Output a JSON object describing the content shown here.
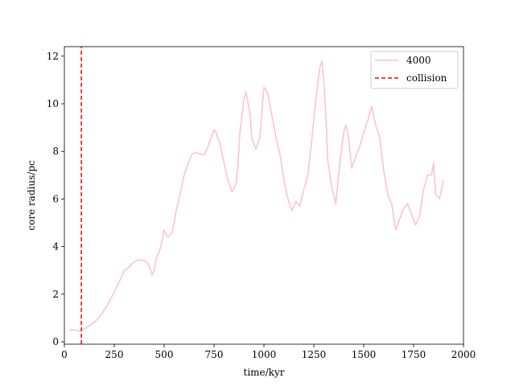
{
  "chart_data": {
    "type": "line",
    "title": "",
    "xlabel": "time/kyr",
    "ylabel": "core radius/pc",
    "xlim": [
      0,
      2000
    ],
    "ylim": [
      -0.1,
      12.4
    ],
    "xticks": [
      0,
      250,
      500,
      750,
      1000,
      1250,
      1500,
      1750,
      2000
    ],
    "yticks": [
      0,
      2,
      4,
      6,
      8,
      10,
      12
    ],
    "grid": false,
    "legend_position": "top-right",
    "series": [
      {
        "name": "4000",
        "color": "#ffc0cb",
        "style": "solid",
        "x": [
          25,
          50,
          80,
          100,
          130,
          160,
          190,
          220,
          250,
          280,
          300,
          320,
          340,
          360,
          380,
          400,
          420,
          440,
          450,
          460,
          480,
          500,
          510,
          520,
          540,
          550,
          560,
          580,
          600,
          620,
          640,
          660,
          680,
          700,
          720,
          740,
          750,
          760,
          780,
          800,
          820,
          840,
          860,
          870,
          880,
          900,
          910,
          930,
          940,
          960,
          980,
          1000,
          1020,
          1040,
          1060,
          1080,
          1100,
          1120,
          1140,
          1160,
          1180,
          1200,
          1220,
          1240,
          1260,
          1280,
          1290,
          1300,
          1310,
          1320,
          1340,
          1360,
          1380,
          1400,
          1410,
          1420,
          1440,
          1460,
          1480,
          1500,
          1520,
          1540,
          1560,
          1580,
          1600,
          1620,
          1640,
          1660,
          1700,
          1720,
          1760,
          1780,
          1800,
          1820,
          1840,
          1850,
          1860,
          1880,
          1900
        ],
        "y": [
          0.5,
          0.5,
          0.45,
          0.55,
          0.7,
          0.9,
          1.2,
          1.6,
          2.1,
          2.6,
          3.0,
          3.1,
          3.3,
          3.4,
          3.45,
          3.4,
          3.3,
          2.8,
          3.0,
          3.5,
          3.9,
          4.7,
          4.5,
          4.4,
          4.6,
          5.0,
          5.5,
          6.2,
          7.0,
          7.5,
          7.9,
          7.95,
          7.9,
          7.85,
          8.2,
          8.7,
          8.9,
          8.8,
          8.3,
          7.5,
          6.8,
          6.3,
          6.6,
          7.5,
          8.8,
          10.2,
          10.5,
          9.6,
          8.5,
          8.1,
          8.6,
          10.7,
          10.4,
          9.5,
          8.6,
          7.9,
          6.8,
          6.0,
          5.5,
          5.9,
          5.7,
          6.4,
          7.0,
          8.5,
          10.2,
          11.5,
          11.8,
          11.0,
          9.5,
          7.6,
          6.5,
          5.8,
          7.5,
          8.8,
          9.1,
          8.8,
          7.3,
          7.8,
          8.2,
          8.8,
          9.3,
          9.9,
          9.1,
          8.6,
          7.2,
          6.2,
          5.8,
          4.7,
          5.6,
          5.8,
          4.9,
          5.3,
          6.4,
          7.0,
          7.0,
          7.5,
          6.2,
          6.0,
          6.8
        ]
      },
      {
        "name": "collision",
        "color": "#ff0000",
        "style": "dashed",
        "x": [
          85,
          85
        ],
        "y": [
          -0.1,
          12.4
        ]
      }
    ]
  }
}
